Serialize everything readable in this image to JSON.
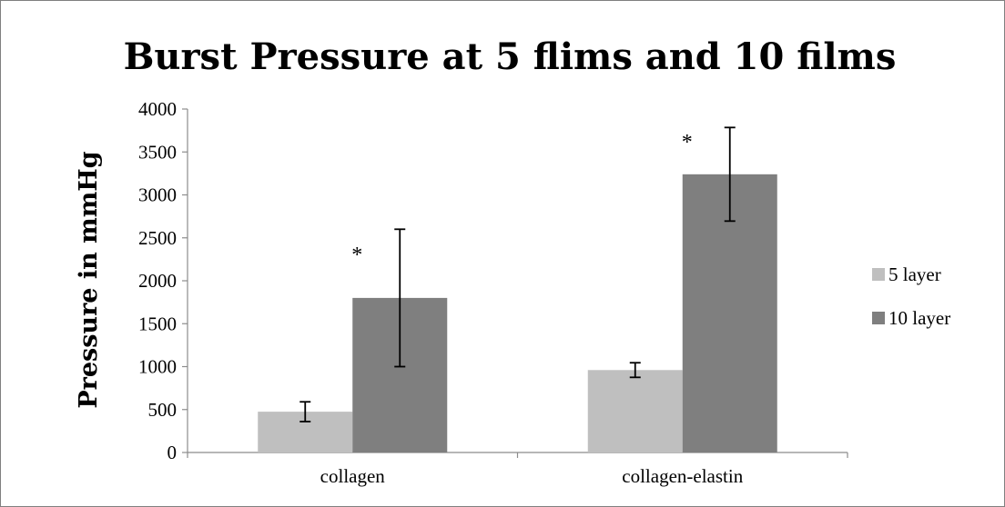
{
  "chart_data": {
    "type": "bar",
    "title": "Burst Pressure at 5 flims and 10 films",
    "xlabel": "",
    "ylabel": "Pressure in mmHg",
    "ylim": [
      0,
      4000
    ],
    "yticks": [
      0,
      500,
      1000,
      1500,
      2000,
      2500,
      3000,
      3500,
      4000
    ],
    "categories": [
      "collagen",
      "collagen-elastin"
    ],
    "series": [
      {
        "name": "5 layer",
        "values": [
          475,
          960
        ],
        "error": [
          115,
          85
        ],
        "color": "#bfbfbf"
      },
      {
        "name": "10 layer",
        "values": [
          1800,
          3240
        ],
        "error": [
          800,
          545
        ],
        "color": "#7f7f7f"
      }
    ],
    "annotations": [
      {
        "text": "*",
        "category": "collagen",
        "series": "10 layer"
      },
      {
        "text": "*",
        "category": "collagen-elastin",
        "series": "10 layer"
      }
    ],
    "legend": "right",
    "grid": false
  }
}
